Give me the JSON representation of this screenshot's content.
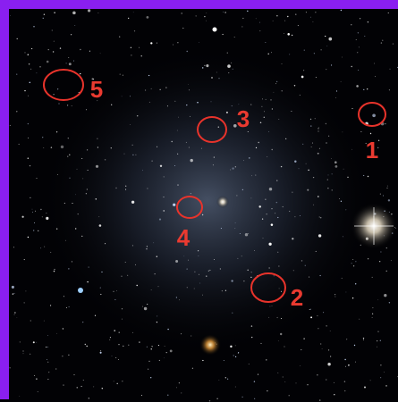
{
  "annotations": [
    {
      "label": "1"
    },
    {
      "label": "2"
    },
    {
      "label": "3"
    },
    {
      "label": "4"
    },
    {
      "label": "5"
    }
  ]
}
